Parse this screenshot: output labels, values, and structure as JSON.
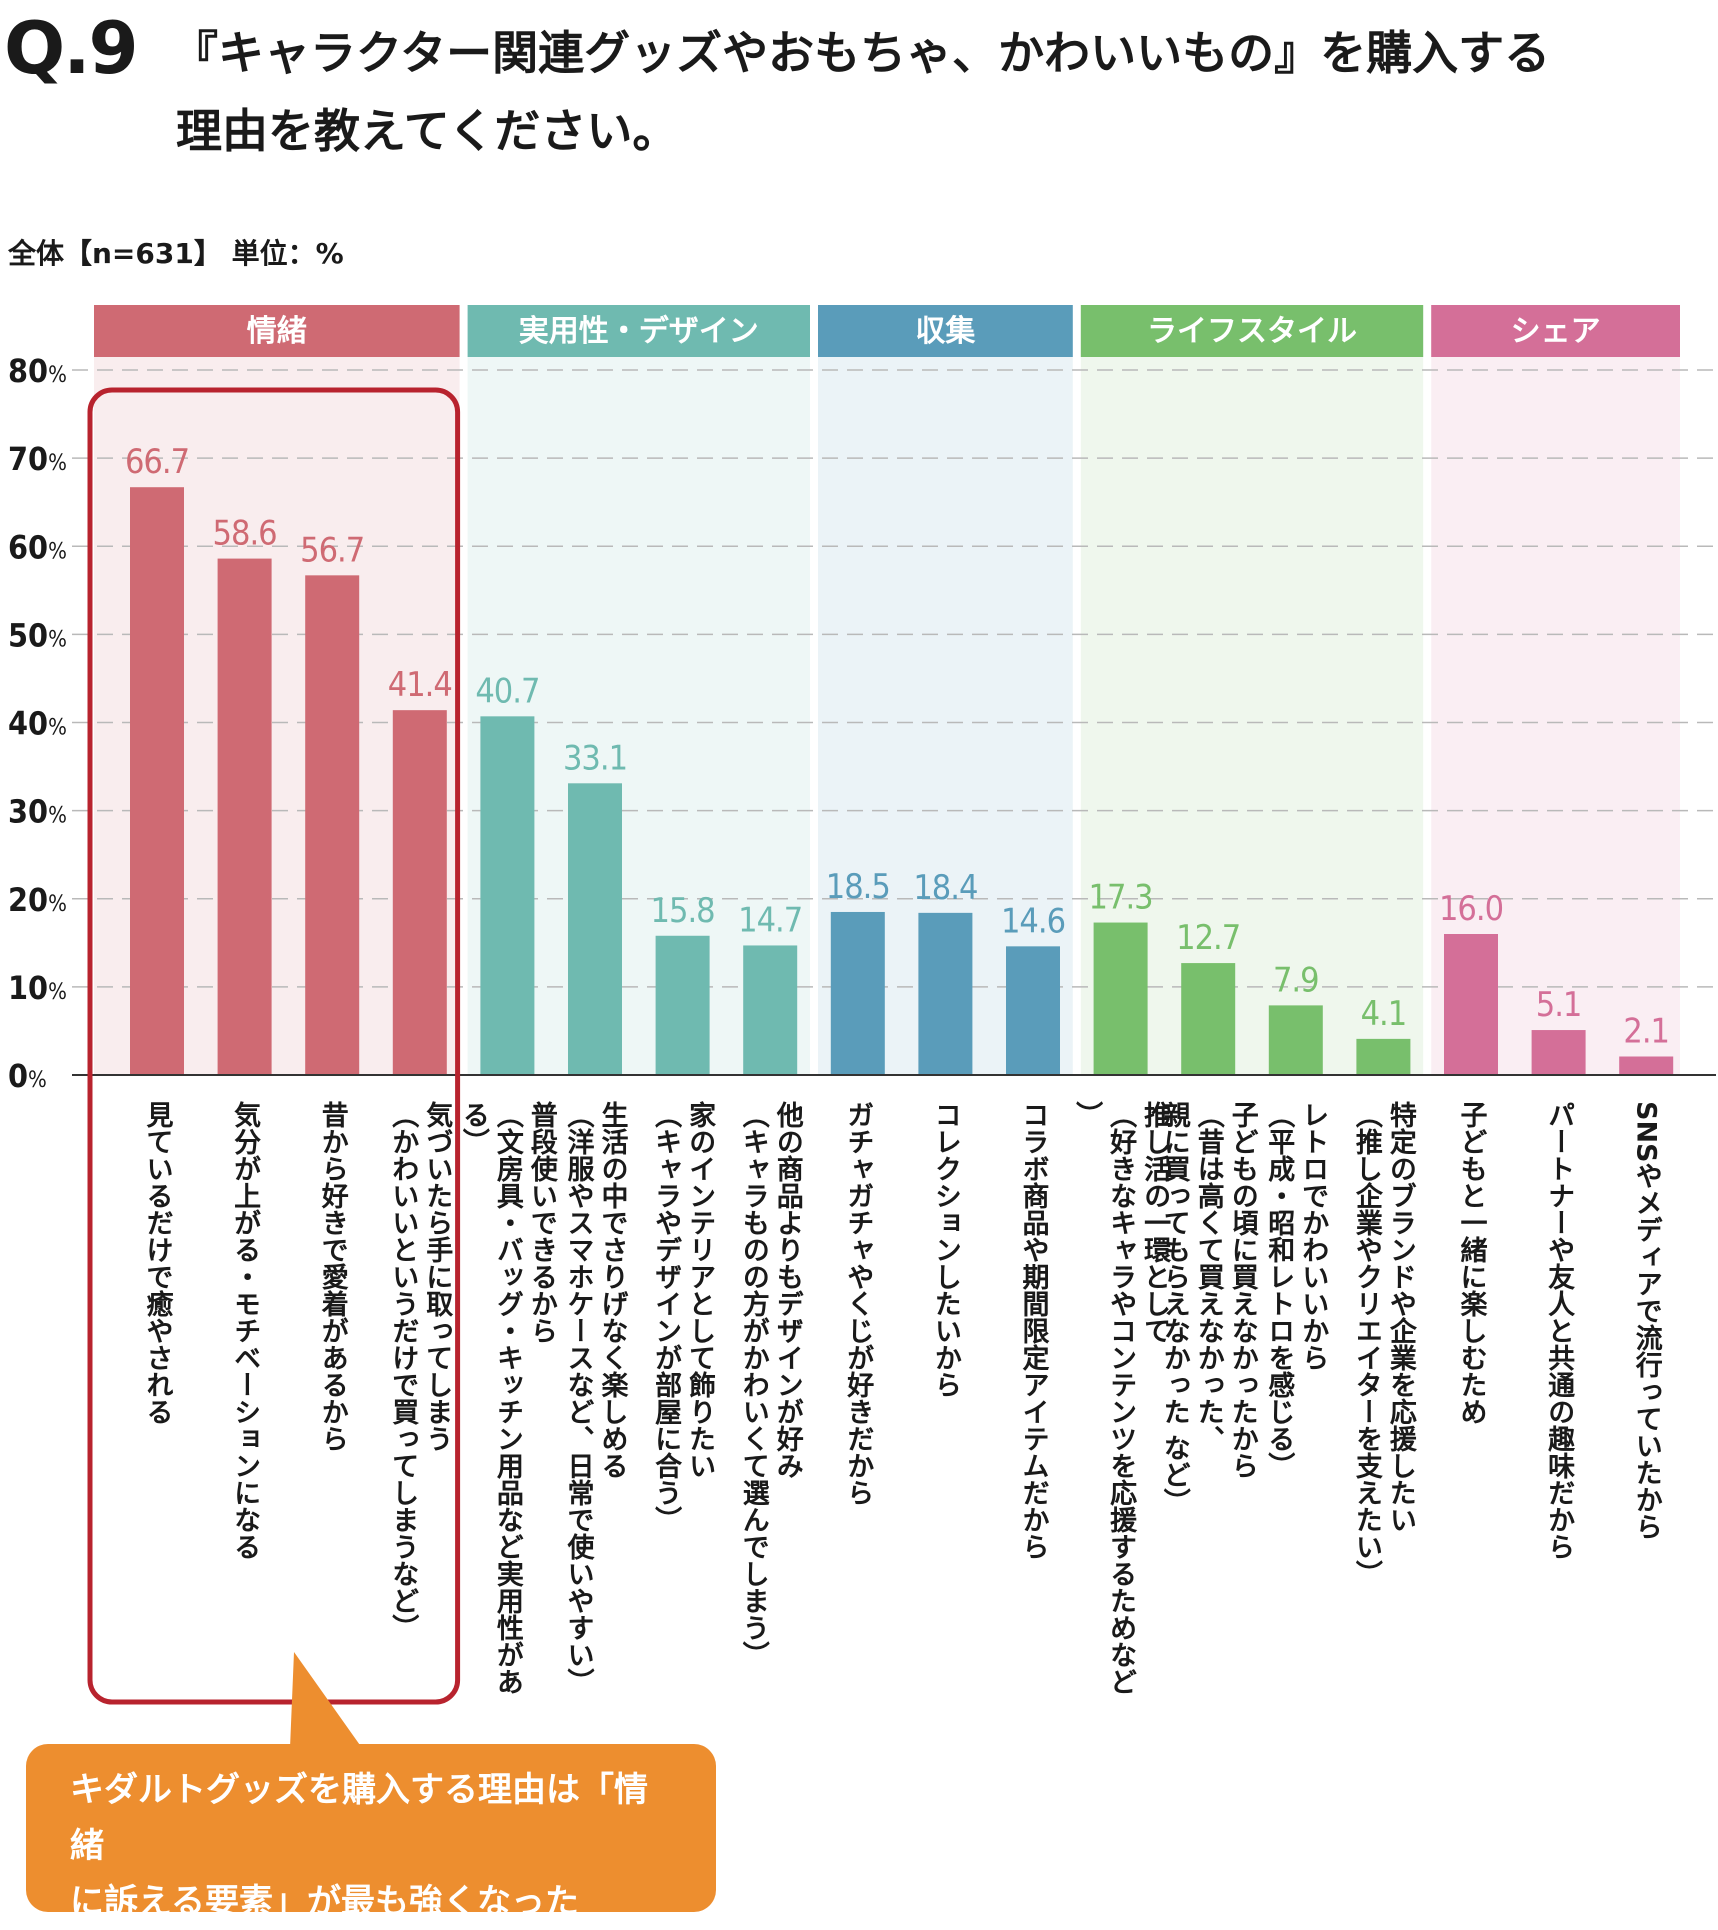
{
  "header": {
    "q_label": "Q.9",
    "title_line1": "『キャラクター関連グッズやおもちゃ、かわいいもの』を購入する",
    "title_line2": "理由を教えてください。"
  },
  "sample_note": "全体【n=631】 単位：%",
  "colors": {
    "emotion": "#cf6a73",
    "practical": "#6fbab0",
    "collection": "#5a9cba",
    "lifestyle": "#78bf6c",
    "share": "#d46f98",
    "highlight": "#b8232e",
    "callout": "#ed8e2f"
  },
  "callout": {
    "line1": "キダルトグッズを購入する理由は「情緒",
    "line2": "に訴える要素」が最も強くなった"
  },
  "chart_data": {
    "type": "bar",
    "title": "",
    "xlabel": "",
    "ylabel": "",
    "ylim": [
      0,
      80
    ],
    "yticks": [
      0,
      10,
      20,
      30,
      40,
      50,
      60,
      70,
      80
    ],
    "ytick_labels": [
      "0%",
      "10%",
      "20%",
      "30%",
      "40%",
      "50%",
      "60%",
      "70%",
      "80%"
    ],
    "grid": true,
    "groups": [
      {
        "name": "情緒",
        "color_key": "emotion",
        "highlighted": true,
        "items": [
          {
            "label": "見ているだけで癒やされる",
            "value": 66.7,
            "value_text": "66.7"
          },
          {
            "label": "気分が上がる・モチベーションになる",
            "value": 58.6,
            "value_text": "58.6"
          },
          {
            "label": "昔から好きで愛着があるから",
            "value": 56.7,
            "value_text": "56.7"
          },
          {
            "label": "気づいたら手に取ってしまう（かわいいというだけで買ってしまうなど）",
            "value": 41.4,
            "value_text": "41.4"
          }
        ]
      },
      {
        "name": "実用性・デザイン",
        "color_key": "practical",
        "items": [
          {
            "label": "普段使いできるから（文房具・バッグ・キッチン用品など実用性がある）",
            "value": 40.7,
            "value_text": "40.7"
          },
          {
            "label": "生活の中でさりげなく楽しめる（洋服やスマホケースなど、日常で使いやすい）",
            "value": 33.1,
            "value_text": "33.1"
          },
          {
            "label": "家のインテリアとして飾りたい（キャラやデザインが部屋に合う）",
            "value": 15.8,
            "value_text": "15.8"
          },
          {
            "label": "他の商品よりもデザインが好み（キャラものの方がかわいくて選んでしまう）",
            "value": 14.7,
            "value_text": "14.7"
          }
        ]
      },
      {
        "name": "収集",
        "color_key": "collection",
        "items": [
          {
            "label": "ガチャガチャやくじが好きだから",
            "value": 18.5,
            "value_text": "18.5"
          },
          {
            "label": "コレクションしたいから",
            "value": 18.4,
            "value_text": "18.4"
          },
          {
            "label": "コラボ商品や期間限定アイテムだから",
            "value": 14.6,
            "value_text": "14.6"
          }
        ]
      },
      {
        "name": "ライフスタイル",
        "color_key": "lifestyle",
        "items": [
          {
            "label": "推し活の一環として（好きなキャラやコンテンツを応援するためなど）",
            "value": 17.3,
            "value_text": "17.3"
          },
          {
            "label": "子どもの頃に買えなかったから（昔は高くて買えなかった、親に買ってもらえなかった など）",
            "value": 12.7,
            "value_text": "12.7"
          },
          {
            "label": "レトロでかわいいから（平成・昭和レトロを感じる）",
            "value": 7.9,
            "value_text": "7.9"
          },
          {
            "label": "特定のブランドや企業を応援したい（推し企業やクリエイターを支えたい）",
            "value": 4.1,
            "value_text": "4.1"
          }
        ]
      },
      {
        "name": "シェア",
        "color_key": "share",
        "items": [
          {
            "label": "子どもと一緒に楽しむため",
            "value": 16.0,
            "value_text": "16.0"
          },
          {
            "label": "パートナーや友人と共通の趣味だから",
            "value": 5.1,
            "value_text": "5.1"
          },
          {
            "label": "SNSやメディアで流行っていたから",
            "value": 2.1,
            "value_text": "2.1"
          }
        ]
      }
    ]
  }
}
